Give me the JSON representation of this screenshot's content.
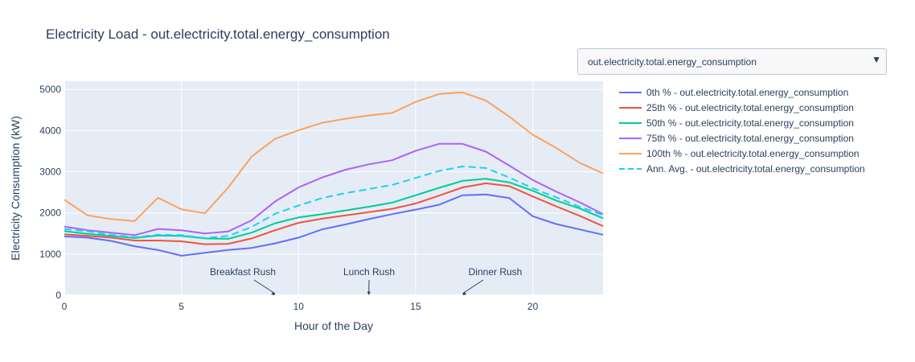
{
  "title": "Electricity Load - out.electricity.total.energy_consumption",
  "dropdown": {
    "selected": "out.electricity.total.energy_consumption",
    "arrow_icon": "triangle-down-icon"
  },
  "chart_data": {
    "type": "line",
    "xlabel": "Hour of the Day",
    "ylabel": "Electricity Consumption (kW)",
    "xlim": [
      0,
      23
    ],
    "ylim": [
      0,
      5200
    ],
    "x_ticks": [
      0,
      5,
      10,
      15,
      20
    ],
    "y_ticks": [
      0,
      1000,
      2000,
      3000,
      4000,
      5000
    ],
    "grid": true,
    "legend_position": "right",
    "x": [
      0,
      1,
      2,
      3,
      4,
      5,
      6,
      7,
      8,
      9,
      10,
      11,
      12,
      13,
      14,
      15,
      16,
      17,
      18,
      19,
      20,
      21,
      22,
      23
    ],
    "series": [
      {
        "name": "0th % - out.electricity.total.energy_consumption",
        "color": "#636efa",
        "dash": "solid",
        "values": [
          1430,
          1400,
          1320,
          1190,
          1100,
          960,
          1030,
          1100,
          1150,
          1260,
          1400,
          1600,
          1720,
          1850,
          1970,
          2080,
          2200,
          2430,
          2450,
          2360,
          1920,
          1730,
          1600,
          1470
        ]
      },
      {
        "name": "25th % - out.electricity.total.energy_consumption",
        "color": "#ef553b",
        "dash": "solid",
        "values": [
          1480,
          1440,
          1400,
          1330,
          1330,
          1310,
          1240,
          1250,
          1380,
          1580,
          1760,
          1860,
          1940,
          2020,
          2100,
          2230,
          2420,
          2620,
          2720,
          2650,
          2400,
          2160,
          1930,
          1680
        ]
      },
      {
        "name": "50th % - out.electricity.total.energy_consumption",
        "color": "#00cc96",
        "dash": "solid",
        "values": [
          1560,
          1490,
          1440,
          1390,
          1450,
          1440,
          1380,
          1370,
          1520,
          1750,
          1890,
          1970,
          2060,
          2150,
          2250,
          2430,
          2610,
          2780,
          2830,
          2740,
          2540,
          2300,
          2110,
          1870
        ]
      },
      {
        "name": "75th % - out.electricity.total.energy_consumption",
        "color": "#ab63fa",
        "dash": "solid",
        "values": [
          1670,
          1580,
          1520,
          1460,
          1610,
          1580,
          1500,
          1550,
          1820,
          2280,
          2620,
          2860,
          3050,
          3180,
          3280,
          3510,
          3680,
          3680,
          3490,
          3150,
          2800,
          2520,
          2260,
          1970
        ]
      },
      {
        "name": "100th % - out.electricity.total.energy_consumption",
        "color": "#ffa15a",
        "dash": "solid",
        "values": [
          2320,
          1940,
          1850,
          1800,
          2370,
          2090,
          1990,
          2620,
          3370,
          3800,
          4010,
          4190,
          4290,
          4370,
          4430,
          4700,
          4890,
          4930,
          4730,
          4340,
          3900,
          3580,
          3220,
          2960
        ]
      },
      {
        "name": "Ann. Avg. - out.electricity.total.energy_consumption",
        "color": "#19d3f3",
        "dash": "dash",
        "values": [
          1610,
          1550,
          1470,
          1410,
          1470,
          1460,
          1390,
          1440,
          1660,
          1980,
          2180,
          2360,
          2480,
          2580,
          2680,
          2850,
          3020,
          3130,
          3090,
          2860,
          2600,
          2380,
          2150,
          1950
        ]
      }
    ],
    "annotations": [
      {
        "text": "Breakfast Rush",
        "x": 9,
        "y": 0
      },
      {
        "text": "Lunch Rush",
        "x": 13,
        "y": 0
      },
      {
        "text": "Dinner Rush",
        "x": 17,
        "y": 0
      }
    ]
  }
}
